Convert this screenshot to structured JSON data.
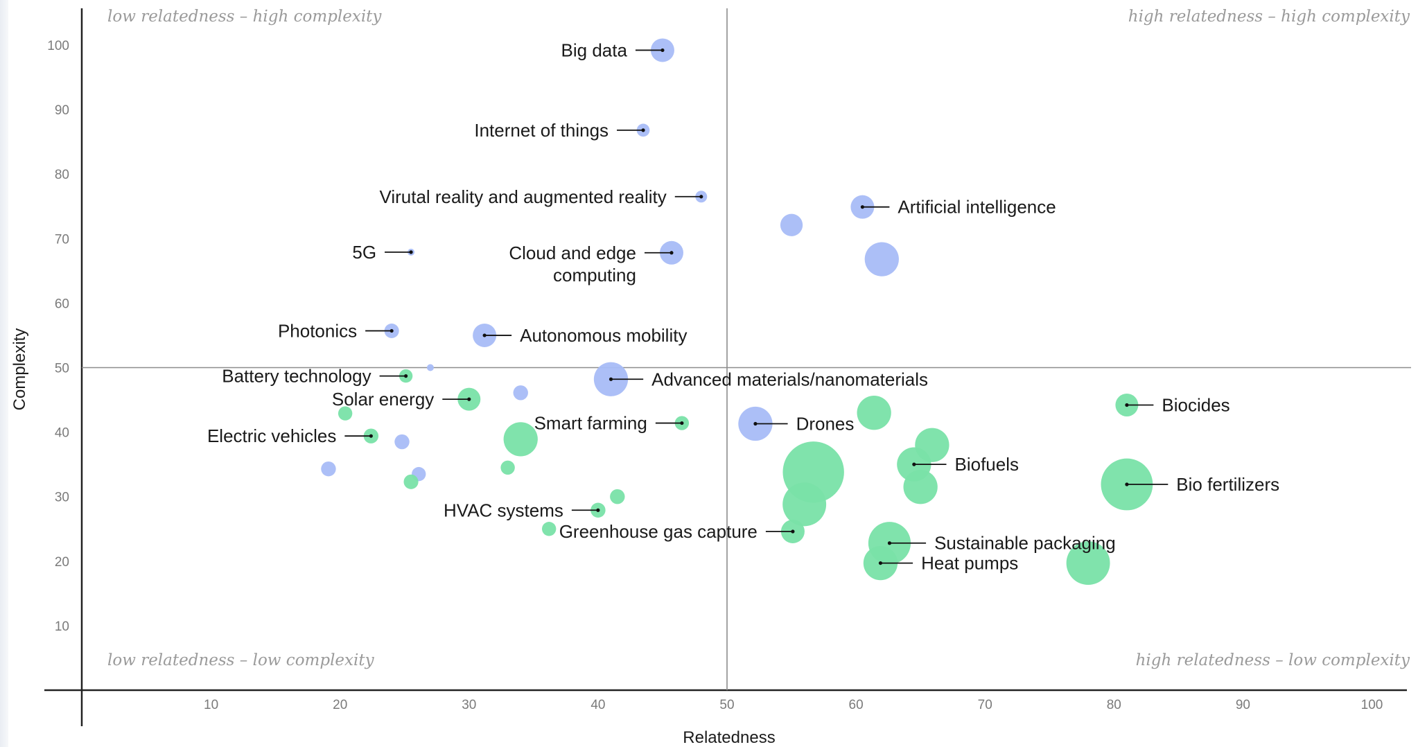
{
  "chart_data": {
    "type": "scatter",
    "xlabel": "Relatedness",
    "ylabel": "Complexity",
    "xlim": [
      0,
      102
    ],
    "ylim": [
      0,
      105
    ],
    "x_ticks": [
      10,
      20,
      30,
      40,
      50,
      60,
      70,
      80,
      90,
      100
    ],
    "y_ticks": [
      10,
      20,
      30,
      40,
      50,
      60,
      70,
      80,
      90,
      100
    ],
    "divider": {
      "x": 50,
      "y": 50
    },
    "quadrant_labels": {
      "top_left": "low relatedness – high complexity",
      "top_right": "high relatedness – high complexity",
      "bottom_left": "low relatedness – low complexity",
      "bottom_right": "high relatedness – low complexity"
    },
    "colors": {
      "digital": "#a8bcf7",
      "green": "#79e1a8"
    },
    "points": [
      {
        "label": "Big data",
        "x": 45,
        "y": 99.2,
        "size": 1.0,
        "group": "digital"
      },
      {
        "label": "Internet of things",
        "x": 43.5,
        "y": 86.8,
        "size": 0.55,
        "group": "digital"
      },
      {
        "label": "Virutal reality and augmented reality",
        "x": 48,
        "y": 76.5,
        "size": 0.5,
        "group": "digital"
      },
      {
        "label": "Artificial intelligence",
        "x": 60.5,
        "y": 74.9,
        "size": 1.0,
        "group": "digital"
      },
      {
        "label": "",
        "x": 55,
        "y": 72.1,
        "size": 0.95,
        "group": "digital"
      },
      {
        "label": "5G",
        "x": 25.5,
        "y": 67.9,
        "size": 0.18,
        "group": "digital"
      },
      {
        "label": "Cloud and edge computing",
        "x": 45.7,
        "y": 67.8,
        "size": 1.0,
        "group": "digital"
      },
      {
        "label": "",
        "x": 62,
        "y": 66.8,
        "size": 1.45,
        "group": "digital"
      },
      {
        "label": "Photonics",
        "x": 24,
        "y": 55.7,
        "size": 0.62,
        "group": "digital"
      },
      {
        "label": "Autonomous mobility",
        "x": 31.2,
        "y": 55,
        "size": 1.0,
        "group": "digital"
      },
      {
        "label": "",
        "x": 27,
        "y": 50,
        "size": 0.2,
        "group": "digital"
      },
      {
        "label": "Advanced materials/nanomaterials",
        "x": 41,
        "y": 48.2,
        "size": 1.45,
        "group": "digital"
      },
      {
        "label": "",
        "x": 34,
        "y": 46.1,
        "size": 0.63,
        "group": "digital"
      },
      {
        "label": "Drones",
        "x": 52.2,
        "y": 41.3,
        "size": 1.45,
        "group": "digital"
      },
      {
        "label": "",
        "x": 24.8,
        "y": 38.5,
        "size": 0.63,
        "group": "digital"
      },
      {
        "label": "",
        "x": 19.1,
        "y": 34.3,
        "size": 0.63,
        "group": "digital"
      },
      {
        "label": "",
        "x": 26.1,
        "y": 33.5,
        "size": 0.6,
        "group": "digital"
      },
      {
        "label": "Battery technology",
        "x": 25.1,
        "y": 48.7,
        "size": 0.57,
        "group": "green"
      },
      {
        "label": "Solar energy",
        "x": 30,
        "y": 45.1,
        "size": 0.97,
        "group": "green"
      },
      {
        "label": "Biocides",
        "x": 81,
        "y": 44.2,
        "size": 0.97,
        "group": "green"
      },
      {
        "label": "",
        "x": 61.4,
        "y": 43,
        "size": 1.45,
        "group": "green"
      },
      {
        "label": "",
        "x": 20.4,
        "y": 42.9,
        "size": 0.6,
        "group": "green"
      },
      {
        "label": "Smart farming",
        "x": 46.5,
        "y": 41.4,
        "size": 0.6,
        "group": "green"
      },
      {
        "label": "Electric vehicles",
        "x": 22.4,
        "y": 39.4,
        "size": 0.63,
        "group": "green"
      },
      {
        "label": "",
        "x": 34,
        "y": 38.9,
        "size": 1.45,
        "group": "green"
      },
      {
        "label": "",
        "x": 65.9,
        "y": 38,
        "size": 1.45,
        "group": "green"
      },
      {
        "label": "Biofuels",
        "x": 64.5,
        "y": 35,
        "size": 1.45,
        "group": "green"
      },
      {
        "label": "",
        "x": 33,
        "y": 34.5,
        "size": 0.6,
        "group": "green"
      },
      {
        "label": "",
        "x": 56.7,
        "y": 33.8,
        "size": 2.6,
        "group": "green"
      },
      {
        "label": "",
        "x": 25.5,
        "y": 32.3,
        "size": 0.62,
        "group": "green"
      },
      {
        "label": "",
        "x": 65,
        "y": 31.5,
        "size": 1.45,
        "group": "green"
      },
      {
        "label": "Bio fertilizers",
        "x": 81,
        "y": 31.9,
        "size": 2.2,
        "group": "green"
      },
      {
        "label": "",
        "x": 41.5,
        "y": 30,
        "size": 0.63,
        "group": "green"
      },
      {
        "label": "",
        "x": 56,
        "y": 28.8,
        "size": 1.85,
        "group": "green"
      },
      {
        "label": "HVAC systems",
        "x": 40,
        "y": 27.9,
        "size": 0.63,
        "group": "green"
      },
      {
        "label": "",
        "x": 36.2,
        "y": 25,
        "size": 0.6,
        "group": "green"
      },
      {
        "label": "Greenhouse gas capture",
        "x": 55.1,
        "y": 24.6,
        "size": 1.0,
        "group": "green"
      },
      {
        "label": "Sustainable packaging",
        "x": 62.6,
        "y": 22.8,
        "size": 1.8,
        "group": "green"
      },
      {
        "label": "Heat pumps",
        "x": 61.9,
        "y": 19.7,
        "size": 1.45,
        "group": "green"
      },
      {
        "label": "",
        "x": 78,
        "y": 19.7,
        "size": 1.85,
        "group": "green"
      }
    ]
  }
}
